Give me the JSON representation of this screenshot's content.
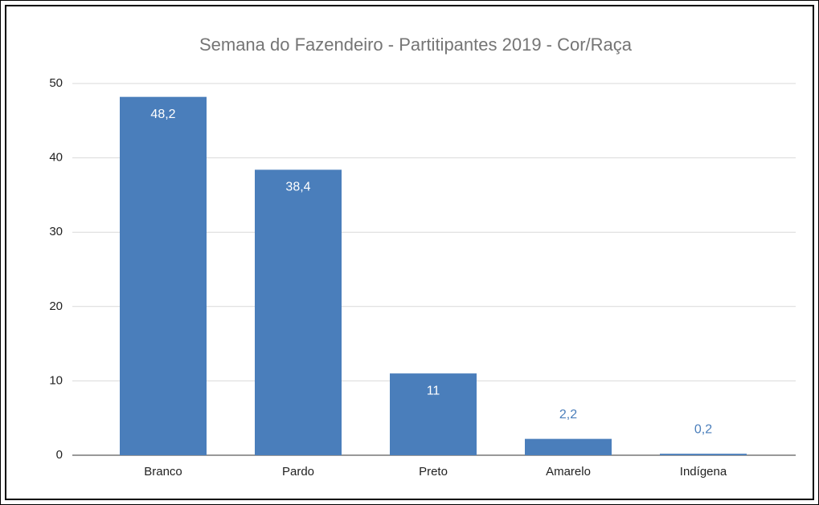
{
  "chart_data": {
    "type": "bar",
    "title": "Semana do Fazendeiro - Partitipantes 2019 - Cor/Raça",
    "categories": [
      "Branco",
      "Pardo",
      "Preto",
      "Amarelo",
      "Indígena"
    ],
    "values": [
      48.2,
      38.4,
      11,
      2.2,
      0.2
    ],
    "value_labels": [
      "48,2",
      "38,4",
      "11",
      "2,2",
      "0,2"
    ],
    "color": "#4a7ebb",
    "ylim": [
      0,
      50
    ],
    "yticks": [
      0,
      10,
      20,
      30,
      40,
      50
    ],
    "grid": true
  }
}
